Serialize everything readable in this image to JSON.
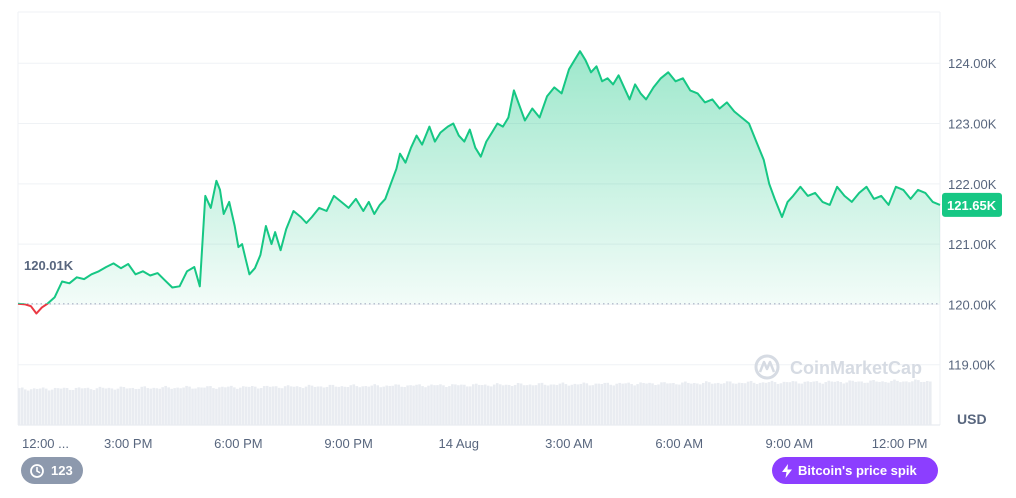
{
  "chart_data": {
    "type": "area",
    "currency": "USD",
    "watermark": "CoinMarketCap",
    "open_value_label": "120.01K",
    "current_value_label": "121.65K",
    "baseline_value": 120.01,
    "ylim": [
      118.0,
      124.85
    ],
    "y_ticks": [
      {
        "value": 119.0,
        "label": "119.00K"
      },
      {
        "value": 120.0,
        "label": "120.00K"
      },
      {
        "value": 121.0,
        "label": "121.00K"
      },
      {
        "value": 122.0,
        "label": "122.00K"
      },
      {
        "value": 123.0,
        "label": "123.00K"
      },
      {
        "value": 124.0,
        "label": "124.00K"
      }
    ],
    "x_range": [
      0,
      25.1
    ],
    "x_unit": "hours since 12:00 AM",
    "x_ticks": [
      {
        "value": 0.0,
        "label": "12:00 ..."
      },
      {
        "value": 3.0,
        "label": "3:00 PM"
      },
      {
        "value": 6.0,
        "label": "6:00 PM"
      },
      {
        "value": 9.0,
        "label": "9:00 PM"
      },
      {
        "value": 12.0,
        "label": "14 Aug"
      },
      {
        "value": 15.0,
        "label": "3:00 AM"
      },
      {
        "value": 18.0,
        "label": "6:00 AM"
      },
      {
        "value": 21.0,
        "label": "9:00 AM"
      },
      {
        "value": 24.0,
        "label": "12:00 PM"
      }
    ],
    "colors": {
      "up": "#16c784",
      "down": "#ea3943",
      "grid": "#eff2f5",
      "baseline": "#a6b0c3",
      "volume": "#e9ecf1"
    },
    "series": [
      {
        "values": [
          [
            0.0,
            120.01
          ],
          [
            0.2,
            120.0
          ],
          [
            0.35,
            119.97
          ],
          [
            0.5,
            119.85
          ],
          [
            0.65,
            119.95
          ],
          [
            0.8,
            120.01
          ],
          [
            1.0,
            120.12
          ],
          [
            1.2,
            120.38
          ],
          [
            1.4,
            120.35
          ],
          [
            1.6,
            120.45
          ],
          [
            1.8,
            120.42
          ],
          [
            2.0,
            120.5
          ],
          [
            2.2,
            120.55
          ],
          [
            2.4,
            120.62
          ],
          [
            2.6,
            120.68
          ],
          [
            2.8,
            120.6
          ],
          [
            3.0,
            120.67
          ],
          [
            3.2,
            120.5
          ],
          [
            3.4,
            120.55
          ],
          [
            3.6,
            120.48
          ],
          [
            3.8,
            120.52
          ],
          [
            4.0,
            120.4
          ],
          [
            4.2,
            120.28
          ],
          [
            4.4,
            120.3
          ],
          [
            4.6,
            120.55
          ],
          [
            4.8,
            120.62
          ],
          [
            4.95,
            120.3
          ],
          [
            5.1,
            121.8
          ],
          [
            5.25,
            121.6
          ],
          [
            5.4,
            122.05
          ],
          [
            5.5,
            121.9
          ],
          [
            5.6,
            121.5
          ],
          [
            5.75,
            121.7
          ],
          [
            5.9,
            121.3
          ],
          [
            6.0,
            120.95
          ],
          [
            6.1,
            121.0
          ],
          [
            6.2,
            120.75
          ],
          [
            6.3,
            120.5
          ],
          [
            6.45,
            120.6
          ],
          [
            6.6,
            120.82
          ],
          [
            6.75,
            121.3
          ],
          [
            6.9,
            121.0
          ],
          [
            7.0,
            121.2
          ],
          [
            7.15,
            120.9
          ],
          [
            7.3,
            121.25
          ],
          [
            7.5,
            121.55
          ],
          [
            7.7,
            121.45
          ],
          [
            7.85,
            121.35
          ],
          [
            8.0,
            121.45
          ],
          [
            8.2,
            121.6
          ],
          [
            8.4,
            121.55
          ],
          [
            8.6,
            121.8
          ],
          [
            8.8,
            121.7
          ],
          [
            9.0,
            121.6
          ],
          [
            9.2,
            121.75
          ],
          [
            9.4,
            121.55
          ],
          [
            9.55,
            121.7
          ],
          [
            9.7,
            121.5
          ],
          [
            9.85,
            121.65
          ],
          [
            10.0,
            121.75
          ],
          [
            10.15,
            122.0
          ],
          [
            10.3,
            122.25
          ],
          [
            10.4,
            122.5
          ],
          [
            10.55,
            122.35
          ],
          [
            10.7,
            122.6
          ],
          [
            10.85,
            122.8
          ],
          [
            11.0,
            122.65
          ],
          [
            11.2,
            122.95
          ],
          [
            11.35,
            122.7
          ],
          [
            11.5,
            122.85
          ],
          [
            11.7,
            122.95
          ],
          [
            11.85,
            123.0
          ],
          [
            12.0,
            122.8
          ],
          [
            12.15,
            122.7
          ],
          [
            12.3,
            122.9
          ],
          [
            12.45,
            122.6
          ],
          [
            12.6,
            122.45
          ],
          [
            12.75,
            122.7
          ],
          [
            12.9,
            122.85
          ],
          [
            13.05,
            123.0
          ],
          [
            13.2,
            122.95
          ],
          [
            13.35,
            123.1
          ],
          [
            13.5,
            123.55
          ],
          [
            13.65,
            123.3
          ],
          [
            13.8,
            123.05
          ],
          [
            14.0,
            123.25
          ],
          [
            14.2,
            123.1
          ],
          [
            14.4,
            123.45
          ],
          [
            14.6,
            123.6
          ],
          [
            14.8,
            123.5
          ],
          [
            15.0,
            123.9
          ],
          [
            15.15,
            124.05
          ],
          [
            15.3,
            124.2
          ],
          [
            15.45,
            124.05
          ],
          [
            15.6,
            123.85
          ],
          [
            15.75,
            123.95
          ],
          [
            15.9,
            123.7
          ],
          [
            16.05,
            123.75
          ],
          [
            16.2,
            123.65
          ],
          [
            16.35,
            123.8
          ],
          [
            16.5,
            123.6
          ],
          [
            16.65,
            123.4
          ],
          [
            16.8,
            123.65
          ],
          [
            16.95,
            123.5
          ],
          [
            17.1,
            123.4
          ],
          [
            17.3,
            123.6
          ],
          [
            17.5,
            123.75
          ],
          [
            17.7,
            123.85
          ],
          [
            17.9,
            123.7
          ],
          [
            18.1,
            123.75
          ],
          [
            18.3,
            123.55
          ],
          [
            18.5,
            123.5
          ],
          [
            18.7,
            123.35
          ],
          [
            18.9,
            123.4
          ],
          [
            19.1,
            123.25
          ],
          [
            19.3,
            123.35
          ],
          [
            19.5,
            123.2
          ],
          [
            19.7,
            123.1
          ],
          [
            19.9,
            123.0
          ],
          [
            20.1,
            122.7
          ],
          [
            20.3,
            122.4
          ],
          [
            20.45,
            122.0
          ],
          [
            20.6,
            121.75
          ],
          [
            20.8,
            121.45
          ],
          [
            20.95,
            121.7
          ],
          [
            21.1,
            121.8
          ],
          [
            21.3,
            121.95
          ],
          [
            21.5,
            121.8
          ],
          [
            21.7,
            121.85
          ],
          [
            21.9,
            121.7
          ],
          [
            22.1,
            121.65
          ],
          [
            22.3,
            121.95
          ],
          [
            22.5,
            121.8
          ],
          [
            22.7,
            121.7
          ],
          [
            22.9,
            121.85
          ],
          [
            23.1,
            121.95
          ],
          [
            23.3,
            121.75
          ],
          [
            23.5,
            121.8
          ],
          [
            23.7,
            121.65
          ],
          [
            23.9,
            121.95
          ],
          [
            24.1,
            121.9
          ],
          [
            24.3,
            121.75
          ],
          [
            24.5,
            121.9
          ],
          [
            24.7,
            121.85
          ],
          [
            24.9,
            121.7
          ],
          [
            25.1,
            121.65
          ]
        ]
      }
    ]
  },
  "history_badge": {
    "label": "123",
    "icon": "history-icon"
  },
  "news_badge": {
    "label": "Bitcoin's price spik",
    "icon": "lightning-icon"
  }
}
